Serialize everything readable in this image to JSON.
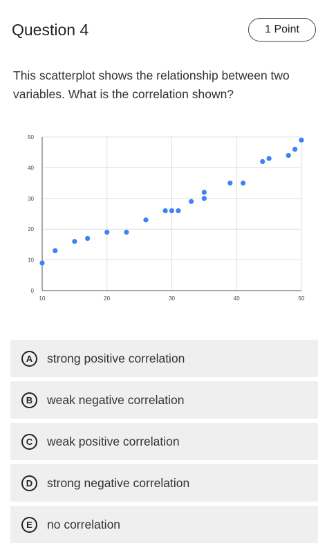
{
  "question": {
    "title": "Question 4",
    "points": "1 Point",
    "prompt": "This scatterplot shows the relationship between two variables. What is the correlation shown?"
  },
  "chart_data": {
    "type": "scatter",
    "title": "",
    "xlabel": "",
    "ylabel": "",
    "xlim": [
      10,
      50
    ],
    "ylim": [
      0,
      50
    ],
    "x_ticks": [
      10,
      20,
      30,
      40,
      50
    ],
    "y_ticks": [
      0,
      10,
      20,
      30,
      40,
      50
    ],
    "grid": true,
    "point_color": "#3b82f6",
    "points": [
      {
        "x": 10,
        "y": 9
      },
      {
        "x": 12,
        "y": 13
      },
      {
        "x": 15,
        "y": 16
      },
      {
        "x": 17,
        "y": 17
      },
      {
        "x": 20,
        "y": 19
      },
      {
        "x": 23,
        "y": 19
      },
      {
        "x": 26,
        "y": 23
      },
      {
        "x": 29,
        "y": 26
      },
      {
        "x": 30,
        "y": 26
      },
      {
        "x": 31,
        "y": 26
      },
      {
        "x": 33,
        "y": 29
      },
      {
        "x": 35,
        "y": 30
      },
      {
        "x": 35,
        "y": 32
      },
      {
        "x": 39,
        "y": 35
      },
      {
        "x": 41,
        "y": 35
      },
      {
        "x": 44,
        "y": 42
      },
      {
        "x": 45,
        "y": 43
      },
      {
        "x": 48,
        "y": 44
      },
      {
        "x": 49,
        "y": 46
      },
      {
        "x": 50,
        "y": 49
      }
    ]
  },
  "choices": [
    {
      "letter": "A",
      "text": "strong positive correlation"
    },
    {
      "letter": "B",
      "text": "weak negative correlation"
    },
    {
      "letter": "C",
      "text": "weak positive correlation"
    },
    {
      "letter": "D",
      "text": "strong negative correlation"
    },
    {
      "letter": "E",
      "text": "no correlation"
    }
  ]
}
